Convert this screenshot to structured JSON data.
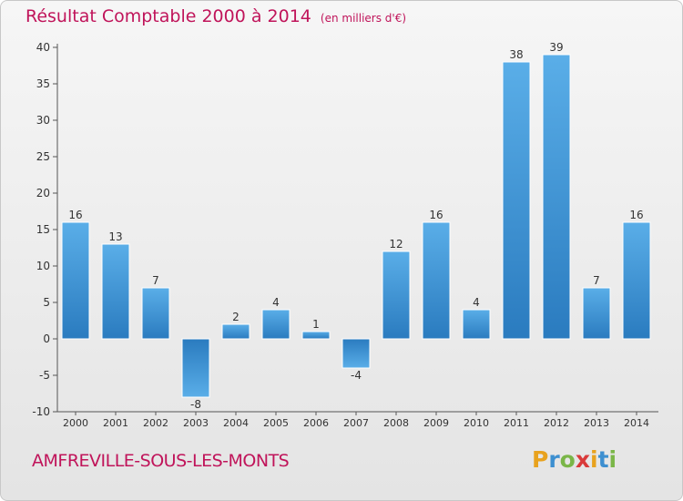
{
  "header": {
    "title": "Résultat Comptable 2000 à 2014",
    "unit": "(en milliers d'€)"
  },
  "footer": {
    "commune": "AMFREVILLE-SOUS-LES-MONTS",
    "brand_letters": [
      "P",
      "r",
      "o",
      "x",
      "i",
      "t",
      "i"
    ],
    "brand_colors": [
      "#e8a21e",
      "#3d8fd0",
      "#7ab648",
      "#d93a3a",
      "#e8a21e",
      "#3d8fd0",
      "#7ab648"
    ]
  },
  "colors": {
    "title": "#c0145a",
    "bar_light": "#5aaee8",
    "bar_dark": "#2a7bbf"
  },
  "chart_data": {
    "type": "bar",
    "categories": [
      "2000",
      "2001",
      "2002",
      "2003",
      "2004",
      "2005",
      "2006",
      "2007",
      "2008",
      "2009",
      "2010",
      "2011",
      "2012",
      "2013",
      "2014"
    ],
    "values": [
      16,
      13,
      7,
      -8,
      2,
      4,
      1,
      -4,
      12,
      16,
      4,
      38,
      39,
      7,
      16
    ],
    "title": "Résultat Comptable 2000 à 2014",
    "xlabel": "",
    "ylabel": "",
    "ylim": [
      -10,
      40
    ],
    "yticks": [
      -10,
      -5,
      0,
      5,
      10,
      15,
      20,
      25,
      30,
      35,
      40
    ],
    "grid": false,
    "legend": "none"
  }
}
